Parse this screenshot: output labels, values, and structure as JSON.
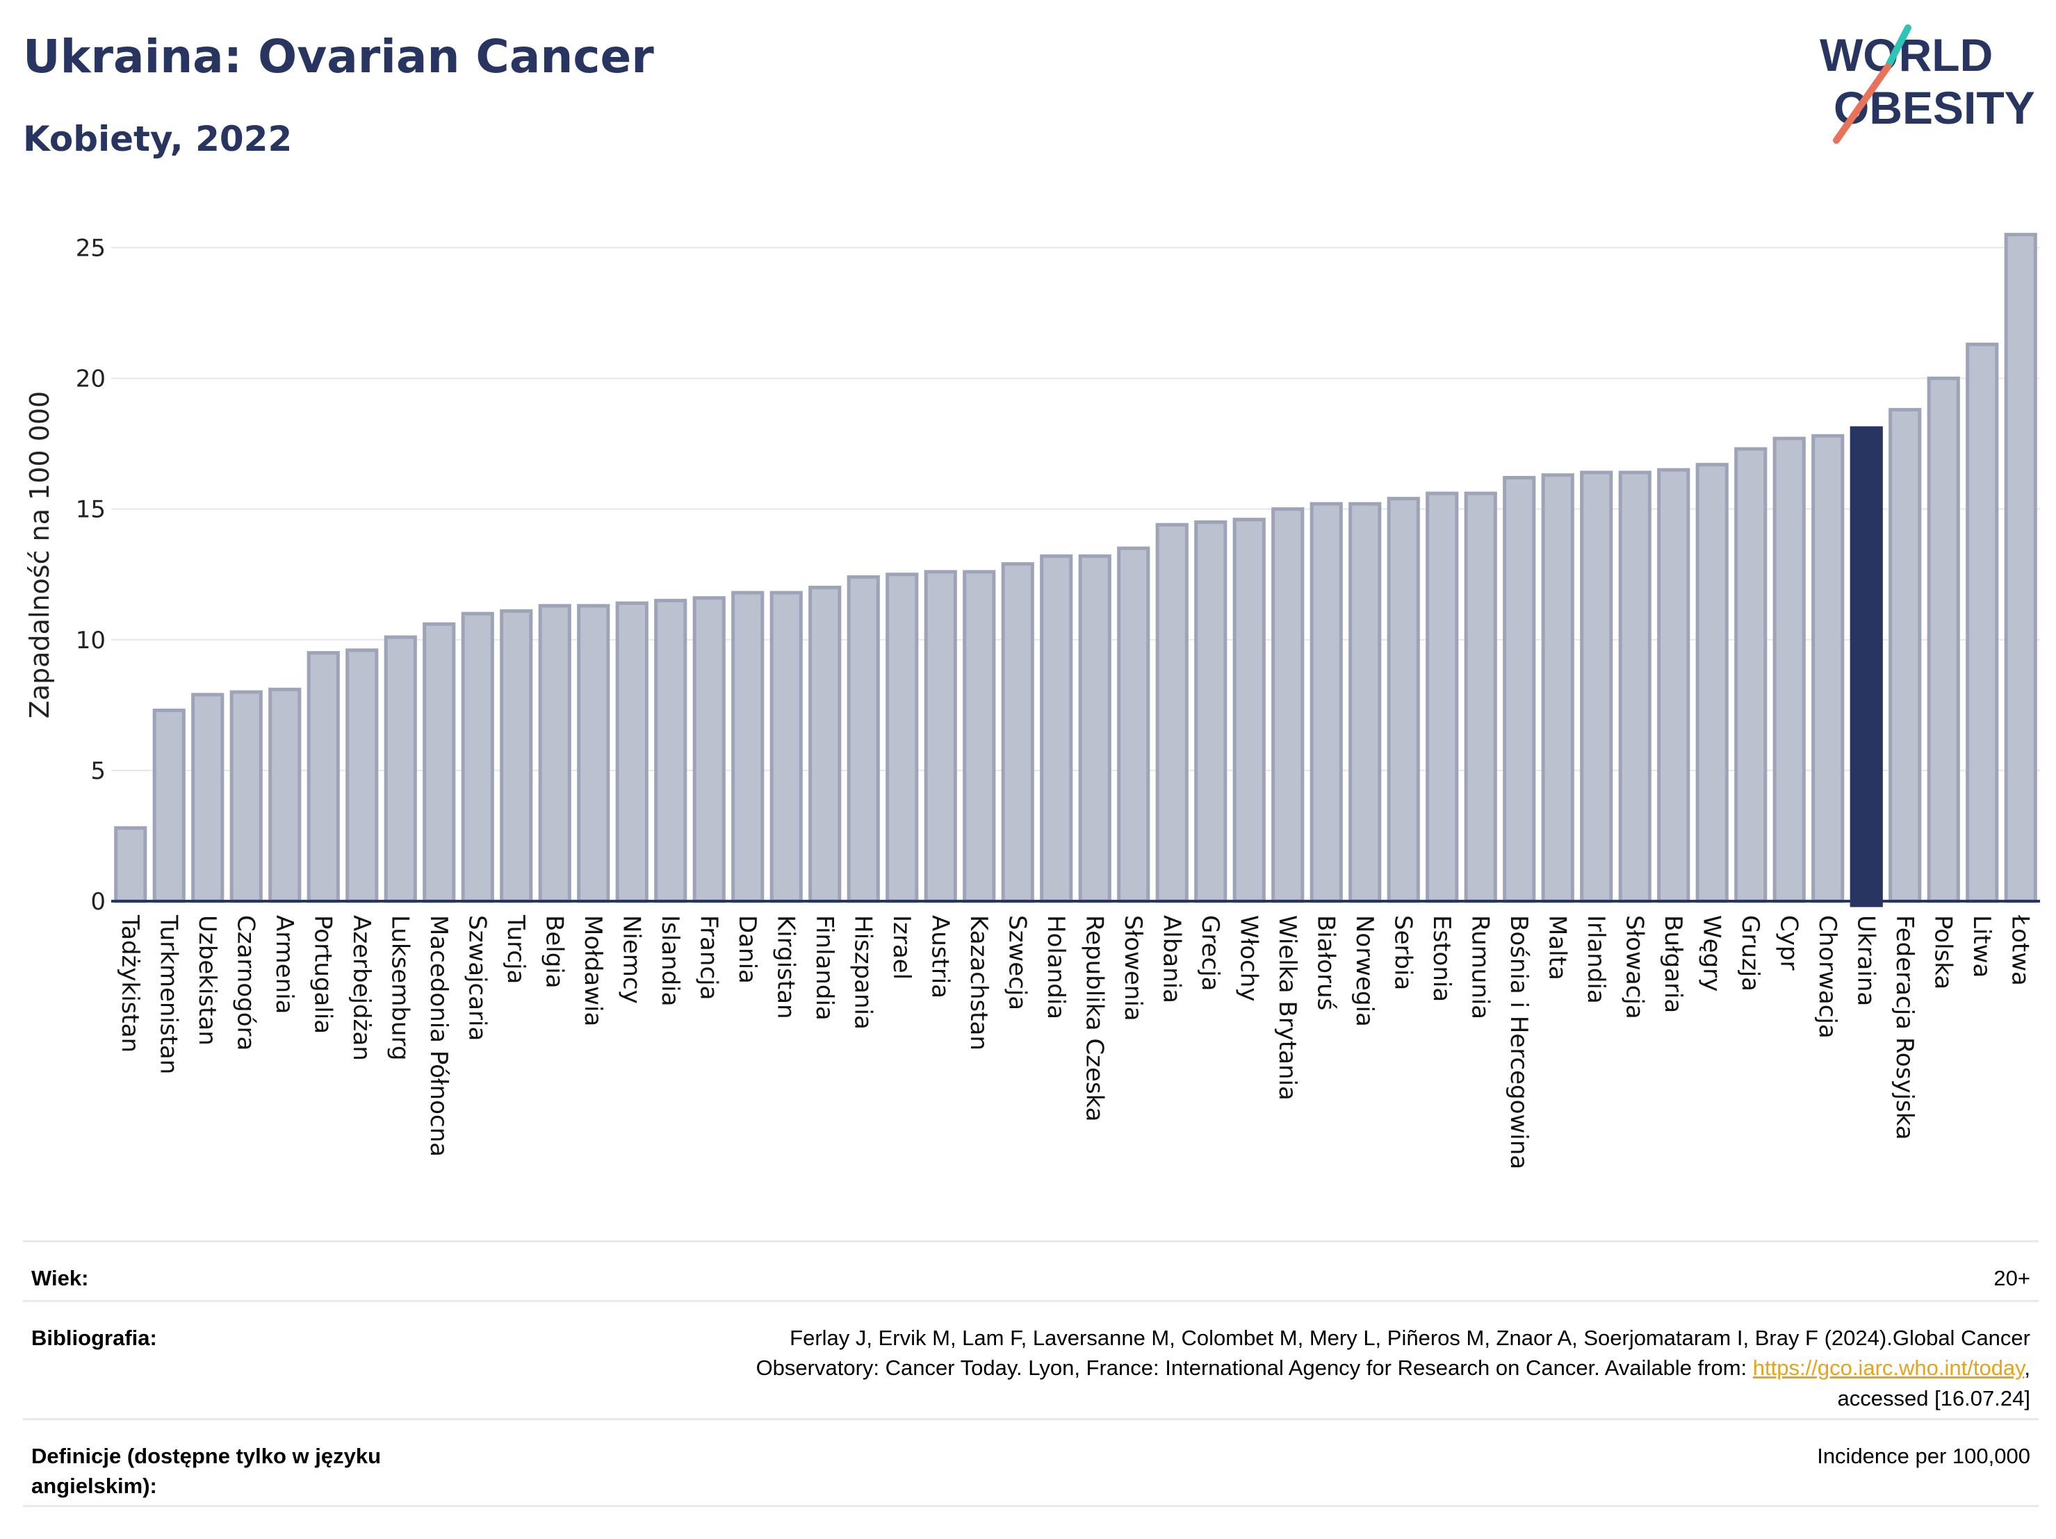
{
  "header": {
    "title": "Ukraina: Ovarian Cancer",
    "subtitle": "Kobiety, 2022"
  },
  "logo": {
    "line1": "WORLD",
    "line2": "OBESITY",
    "colors": {
      "text": "#283560",
      "slash_teal": "#2ec4b6",
      "slash_coral": "#e8735a"
    }
  },
  "chart_data": {
    "type": "bar",
    "ylabel": "Zapadalność na 100 000",
    "ylim": [
      0,
      26.5
    ],
    "yticks": [
      0,
      5,
      10,
      15,
      20,
      25
    ],
    "grid": true,
    "highlight": "Ukraina",
    "colors": {
      "bar": "#bcc1d0",
      "bar_edge": "#9ea4b8",
      "highlight": "#283560",
      "grid": "#e6e7ee",
      "axis": "#283560"
    },
    "categories": [
      "Tadżykistan",
      "Turkmenistan",
      "Uzbekistan",
      "Czarnogóra",
      "Armenia",
      "Portugalia",
      "Azerbejdżan",
      "Luksemburg",
      "Macedonia Północna",
      "Szwajcaria",
      "Turcja",
      "Belgia",
      "Mołdawia",
      "Niemcy",
      "Islandia",
      "Francja",
      "Dania",
      "Kirgistan",
      "Finlandia",
      "Hiszpania",
      "Izrael",
      "Austria",
      "Kazachstan",
      "Szwecja",
      "Holandia",
      "Republika Czeska",
      "Słowenia",
      "Albania",
      "Grecja",
      "Włochy",
      "Wielka Brytania",
      "Białoruś",
      "Norwegia",
      "Serbia",
      "Estonia",
      "Rumunia",
      "Bośnia i Hercegowina",
      "Malta",
      "Irlandia",
      "Słowacja",
      "Bułgaria",
      "Węgry",
      "Gruzja",
      "Cypr",
      "Chorwacja",
      "Ukraina",
      "Federacja Rosyjska",
      "Polska",
      "Litwa",
      "Łotwa"
    ],
    "values": [
      2.8,
      7.3,
      7.9,
      8.0,
      8.1,
      9.5,
      9.6,
      10.1,
      10.6,
      11.0,
      11.1,
      11.3,
      11.3,
      11.4,
      11.5,
      11.6,
      11.8,
      11.8,
      12.0,
      12.4,
      12.5,
      12.6,
      12.6,
      12.9,
      13.2,
      13.2,
      13.5,
      14.4,
      14.5,
      14.6,
      15.0,
      15.2,
      15.2,
      15.4,
      15.6,
      15.6,
      16.2,
      16.3,
      16.4,
      16.4,
      16.5,
      16.7,
      17.3,
      17.7,
      17.8,
      18.1,
      18.8,
      20.0,
      21.3,
      25.5
    ]
  },
  "footer": {
    "age_label": "Wiek:",
    "age_value": "20+",
    "biblio_label": "Bibliografia:",
    "biblio_line1": "Ferlay J, Ervik M, Lam F, Laversanne M, Colombet M, Mery L, Piñeros M, Znaor A, Soerjomataram I, Bray F (2024).Global Cancer",
    "biblio_line2_pre": "Observatory: Cancer Today. Lyon, France: International Agency for Research on Cancer. Available from: ",
    "biblio_link": "https://gco.iarc.who.int/today",
    "biblio_line2_post": ",",
    "biblio_line3": "accessed [16.07.24]",
    "def_label": "Definicje (dostępne tylko w języku angielskim):",
    "def_value": "Incidence per 100,000"
  }
}
